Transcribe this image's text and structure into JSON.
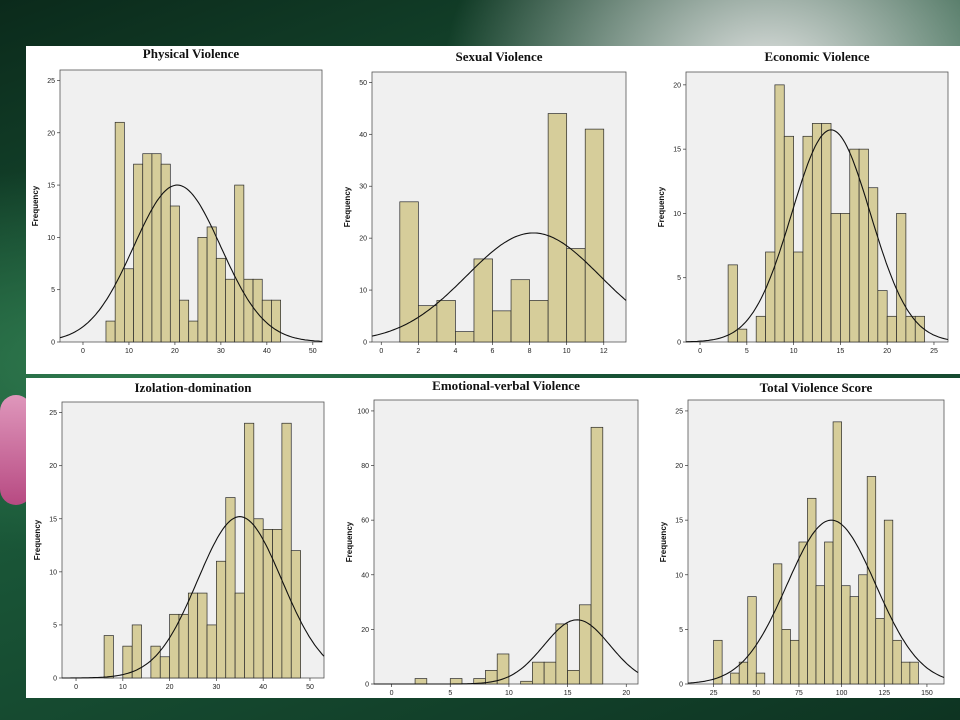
{
  "chart_data": [
    {
      "type": "bar",
      "title": "Physical Violence",
      "xlabel": "",
      "ylabel": "Frequency",
      "xlim": [
        -5,
        52
      ],
      "ylim": [
        0,
        26
      ],
      "xticks": [
        0,
        10,
        20,
        30,
        40,
        50
      ],
      "yticks": [
        0,
        5,
        10,
        15,
        20,
        25
      ],
      "bin_width": 2,
      "bars": [
        {
          "x": 6,
          "y": 2
        },
        {
          "x": 8,
          "y": 21
        },
        {
          "x": 10,
          "y": 7
        },
        {
          "x": 12,
          "y": 17
        },
        {
          "x": 14,
          "y": 18
        },
        {
          "x": 16,
          "y": 18
        },
        {
          "x": 18,
          "y": 17
        },
        {
          "x": 20,
          "y": 13
        },
        {
          "x": 22,
          "y": 4
        },
        {
          "x": 24,
          "y": 2
        },
        {
          "x": 26,
          "y": 10
        },
        {
          "x": 28,
          "y": 11
        },
        {
          "x": 30,
          "y": 8
        },
        {
          "x": 32,
          "y": 6
        },
        {
          "x": 34,
          "y": 15
        },
        {
          "x": 36,
          "y": 6
        },
        {
          "x": 38,
          "y": 6
        },
        {
          "x": 40,
          "y": 4
        },
        {
          "x": 42,
          "y": 4
        }
      ],
      "normal_curve": {
        "mean": 20.5,
        "sd": 9.5,
        "peak": 15
      }
    },
    {
      "type": "bar",
      "title": "Sexual Violence",
      "xlabel": "",
      "ylabel": "Frequency",
      "xlim": [
        -0.5,
        13.2
      ],
      "ylim": [
        0,
        52
      ],
      "xticks": [
        0,
        2,
        4,
        6,
        8,
        10,
        12
      ],
      "yticks": [
        0,
        10,
        20,
        30,
        40,
        50
      ],
      "bin_width": 1,
      "bars": [
        {
          "x": 1.5,
          "y": 27
        },
        {
          "x": 2.5,
          "y": 7
        },
        {
          "x": 3.5,
          "y": 8
        },
        {
          "x": 4.5,
          "y": 2
        },
        {
          "x": 5.5,
          "y": 16
        },
        {
          "x": 6.5,
          "y": 6
        },
        {
          "x": 7.5,
          "y": 12
        },
        {
          "x": 8.5,
          "y": 8
        },
        {
          "x": 9.5,
          "y": 44
        },
        {
          "x": 10.5,
          "y": 18
        },
        {
          "x": 11.5,
          "y": 41
        }
      ],
      "normal_curve": {
        "mean": 8.2,
        "sd": 3.6,
        "peak": 21
      }
    },
    {
      "type": "bar",
      "title": "Economic     Violence",
      "xlabel": "",
      "ylabel": "Frequency",
      "xlim": [
        -1.5,
        26.5
      ],
      "ylim": [
        0,
        21
      ],
      "xticks": [
        0,
        5,
        10,
        15,
        20,
        25
      ],
      "yticks": [
        0,
        5,
        10,
        15,
        20
      ],
      "bin_width": 1,
      "bars": [
        {
          "x": 3.5,
          "y": 6
        },
        {
          "x": 4.5,
          "y": 1
        },
        {
          "x": 6.5,
          "y": 2
        },
        {
          "x": 7.5,
          "y": 7
        },
        {
          "x": 8.5,
          "y": 20
        },
        {
          "x": 9.5,
          "y": 16
        },
        {
          "x": 10.5,
          "y": 7
        },
        {
          "x": 11.5,
          "y": 16
        },
        {
          "x": 12.5,
          "y": 17
        },
        {
          "x": 13.5,
          "y": 17
        },
        {
          "x": 14.5,
          "y": 10
        },
        {
          "x": 15.5,
          "y": 10
        },
        {
          "x": 16.5,
          "y": 15
        },
        {
          "x": 17.5,
          "y": 15
        },
        {
          "x": 18.5,
          "y": 12
        },
        {
          "x": 19.5,
          "y": 4
        },
        {
          "x": 20.5,
          "y": 2
        },
        {
          "x": 21.5,
          "y": 10
        },
        {
          "x": 22.5,
          "y": 2
        },
        {
          "x": 23.5,
          "y": 2
        }
      ],
      "normal_curve": {
        "mean": 14,
        "sd": 4.2,
        "peak": 16.5
      }
    },
    {
      "type": "bar",
      "title": "Izolation-domination",
      "xlabel": "",
      "ylabel": "Frequency",
      "xlim": [
        -3,
        53
      ],
      "ylim": [
        0,
        26
      ],
      "xticks": [
        0,
        10,
        20,
        30,
        40,
        50
      ],
      "yticks": [
        0,
        5,
        10,
        15,
        20,
        25
      ],
      "bin_width": 2,
      "bars": [
        {
          "x": 7,
          "y": 4
        },
        {
          "x": 11,
          "y": 3
        },
        {
          "x": 13,
          "y": 5
        },
        {
          "x": 17,
          "y": 3
        },
        {
          "x": 19,
          "y": 2
        },
        {
          "x": 21,
          "y": 6
        },
        {
          "x": 23,
          "y": 6
        },
        {
          "x": 25,
          "y": 8
        },
        {
          "x": 27,
          "y": 8
        },
        {
          "x": 29,
          "y": 5
        },
        {
          "x": 31,
          "y": 11
        },
        {
          "x": 33,
          "y": 17
        },
        {
          "x": 35,
          "y": 8
        },
        {
          "x": 37,
          "y": 24
        },
        {
          "x": 39,
          "y": 15
        },
        {
          "x": 41,
          "y": 14
        },
        {
          "x": 43,
          "y": 14
        },
        {
          "x": 45,
          "y": 24
        },
        {
          "x": 47,
          "y": 12
        }
      ],
      "normal_curve": {
        "mean": 35,
        "sd": 9,
        "peak": 15.2
      }
    },
    {
      "type": "bar",
      "title": "Emotional-verbal Violence",
      "xlabel": "",
      "ylabel": "Frequency",
      "xlim": [
        -1.5,
        21
      ],
      "ylim": [
        0,
        104
      ],
      "xticks": [
        0,
        5,
        10,
        15,
        20
      ],
      "yticks": [
        0,
        20,
        40,
        60,
        80,
        100
      ],
      "bin_width": 1,
      "bars": [
        {
          "x": 2.5,
          "y": 2
        },
        {
          "x": 5.5,
          "y": 2
        },
        {
          "x": 7.5,
          "y": 2
        },
        {
          "x": 8.5,
          "y": 5
        },
        {
          "x": 9.5,
          "y": 11
        },
        {
          "x": 11.5,
          "y": 1
        },
        {
          "x": 12.5,
          "y": 8
        },
        {
          "x": 13.5,
          "y": 8
        },
        {
          "x": 14.5,
          "y": 22
        },
        {
          "x": 15.5,
          "y": 5
        },
        {
          "x": 16.5,
          "y": 29
        },
        {
          "x": 17.5,
          "y": 94
        }
      ],
      "normal_curve": {
        "mean": 15.8,
        "sd": 2.8,
        "peak": 23.5
      }
    },
    {
      "type": "bar",
      "title": "Total Violence Score",
      "xlabel": "",
      "ylabel": "Frequency",
      "xlim": [
        10,
        160
      ],
      "ylim": [
        0,
        26
      ],
      "xticks": [
        25,
        50,
        75,
        100,
        125,
        150
      ],
      "yticks": [
        0,
        5,
        10,
        15,
        20,
        25
      ],
      "bin_width": 5,
      "bars": [
        {
          "x": 27.5,
          "y": 4
        },
        {
          "x": 37.5,
          "y": 1
        },
        {
          "x": 42.5,
          "y": 2
        },
        {
          "x": 47.5,
          "y": 8
        },
        {
          "x": 52.5,
          "y": 1
        },
        {
          "x": 62.5,
          "y": 11
        },
        {
          "x": 67.5,
          "y": 5
        },
        {
          "x": 72.5,
          "y": 4
        },
        {
          "x": 77.5,
          "y": 13
        },
        {
          "x": 82.5,
          "y": 17
        },
        {
          "x": 87.5,
          "y": 9
        },
        {
          "x": 92.5,
          "y": 13
        },
        {
          "x": 97.5,
          "y": 24
        },
        {
          "x": 102.5,
          "y": 9
        },
        {
          "x": 107.5,
          "y": 8
        },
        {
          "x": 112.5,
          "y": 10
        },
        {
          "x": 117.5,
          "y": 19
        },
        {
          "x": 122.5,
          "y": 6
        },
        {
          "x": 127.5,
          "y": 15
        },
        {
          "x": 132.5,
          "y": 4
        },
        {
          "x": 137.5,
          "y": 2
        },
        {
          "x": 142.5,
          "y": 2
        }
      ],
      "normal_curve": {
        "mean": 94,
        "sd": 26,
        "peak": 15
      }
    }
  ],
  "colors": {
    "bar_fill": "#d6cd9a",
    "bar_stroke": "#2a2a2a",
    "plot_bg": "#f0f0f0",
    "curve": "#111111"
  }
}
